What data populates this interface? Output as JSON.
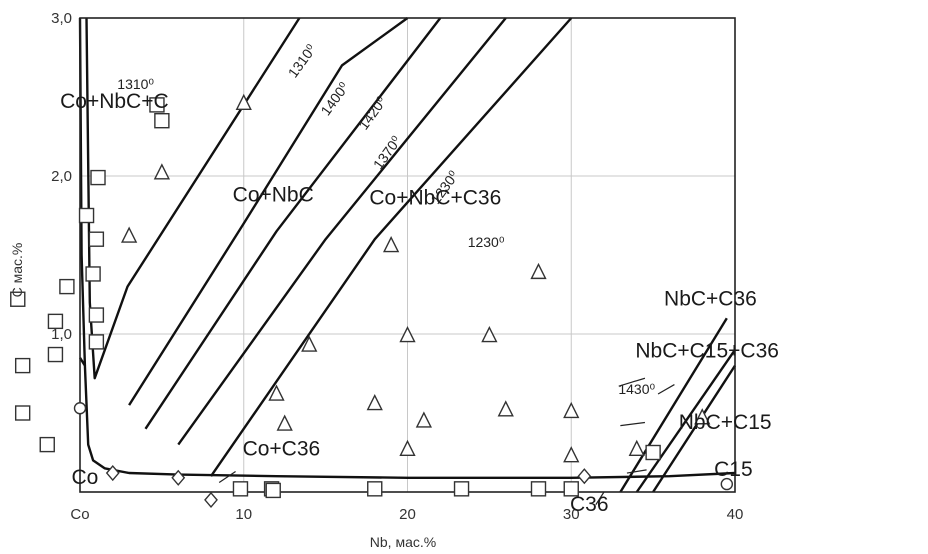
{
  "chart_data": {
    "type": "scatter",
    "title": "",
    "xlabel": "Nb, мас.%",
    "ylabel": "C  мас.%",
    "xlim": [
      0,
      40
    ],
    "ylim": [
      0,
      3.0
    ],
    "x_ticks": [
      {
        "value": 0,
        "label": "Co"
      },
      {
        "value": 10,
        "label": "10"
      },
      {
        "value": 20,
        "label": "20"
      },
      {
        "value": 30,
        "label": "30"
      },
      {
        "value": 40,
        "label": "40"
      }
    ],
    "y_ticks": [
      {
        "value": 1.0,
        "label": "1,0"
      },
      {
        "value": 2.0,
        "label": "2,0"
      },
      {
        "value": 3.0,
        "label": "3,0"
      }
    ],
    "grid": true,
    "series": [
      {
        "marker": "square",
        "points": [
          [
            -0.8,
            1.3
          ],
          [
            4.7,
            2.45
          ],
          [
            5.0,
            2.35
          ],
          [
            1.1,
            1.99
          ],
          [
            0.4,
            1.75
          ],
          [
            1.0,
            1.6
          ],
          [
            -3.8,
            1.22
          ],
          [
            0.8,
            1.38
          ],
          [
            1.0,
            1.12
          ],
          [
            -1.5,
            1.08
          ],
          [
            -1.5,
            0.87
          ],
          [
            1.0,
            0.95
          ],
          [
            -3.5,
            0.8
          ],
          [
            -3.5,
            0.5
          ],
          [
            -2.0,
            0.3
          ],
          [
            9.8,
            0.02
          ],
          [
            11.7,
            0.02
          ],
          [
            11.8,
            0.01
          ],
          [
            18.0,
            0.02
          ],
          [
            23.3,
            0.02
          ],
          [
            28.0,
            0.02
          ],
          [
            30.0,
            0.02
          ],
          [
            35.0,
            0.25
          ]
        ]
      },
      {
        "marker": "triangle",
        "points": [
          [
            10.0,
            2.46
          ],
          [
            5.0,
            2.02
          ],
          [
            3.0,
            1.62
          ],
          [
            19.0,
            1.56
          ],
          [
            28.0,
            1.39
          ],
          [
            14.0,
            0.93
          ],
          [
            20.0,
            0.99
          ],
          [
            25.0,
            0.99
          ],
          [
            18.0,
            0.56
          ],
          [
            21.0,
            0.45
          ],
          [
            26.0,
            0.52
          ],
          [
            30.0,
            0.51
          ],
          [
            12.0,
            0.62
          ],
          [
            12.5,
            0.43
          ],
          [
            20.0,
            0.27
          ],
          [
            30.0,
            0.23
          ],
          [
            34.0,
            0.27
          ],
          [
            38.0,
            0.47
          ]
        ]
      },
      {
        "marker": "diamond",
        "points": [
          [
            2.0,
            0.12
          ],
          [
            6.0,
            0.09
          ],
          [
            8.0,
            -0.05
          ],
          [
            30.8,
            0.1
          ]
        ]
      },
      {
        "marker": "circle",
        "points": [
          [
            0.0,
            0.53
          ],
          [
            39.5,
            0.05
          ]
        ]
      }
    ],
    "lines": [
      {
        "points": [
          [
            0.4,
            3.0
          ],
          [
            0.6,
            1.2
          ],
          [
            0.9,
            0.72
          ],
          [
            2.9,
            1.3
          ],
          [
            13.4,
            3.0
          ]
        ]
      },
      {
        "points": [
          [
            0.0,
            0.85
          ],
          [
            0.3,
            0.8
          ],
          [
            0.5,
            0.3
          ],
          [
            0.8,
            0.2
          ],
          [
            1.5,
            0.15
          ],
          [
            3.0,
            0.12
          ],
          [
            6.0,
            0.11
          ],
          [
            12.0,
            0.1
          ],
          [
            20.0,
            0.09
          ],
          [
            30.0,
            0.09
          ],
          [
            36.0,
            0.1
          ],
          [
            40.0,
            0.12
          ]
        ]
      },
      {
        "points": [
          [
            0.0,
            3.0
          ],
          [
            0.1,
            1.5
          ],
          [
            0.3,
            0.8
          ]
        ]
      },
      {
        "points": [
          [
            3.0,
            0.55
          ],
          [
            10.0,
            1.7
          ],
          [
            16.0,
            2.7
          ],
          [
            20.0,
            3.0
          ]
        ]
      },
      {
        "points": [
          [
            4.0,
            0.4
          ],
          [
            12.0,
            1.65
          ],
          [
            22.0,
            3.0
          ]
        ]
      },
      {
        "points": [
          [
            6.0,
            0.3
          ],
          [
            15.0,
            1.6
          ],
          [
            26.0,
            3.0
          ]
        ]
      },
      {
        "points": [
          [
            8.0,
            0.1
          ],
          [
            18.0,
            1.6
          ],
          [
            30.0,
            3.0
          ]
        ]
      },
      {
        "points": [
          [
            33.0,
            0.0
          ],
          [
            39.5,
            1.1
          ]
        ]
      },
      {
        "points": [
          [
            34.0,
            0.0
          ],
          [
            40.0,
            0.9
          ]
        ]
      },
      {
        "points": [
          [
            35.0,
            0.0
          ],
          [
            40.0,
            0.8
          ]
        ]
      }
    ],
    "annotations": [
      {
        "text": "Co+NbC+C",
        "x": 2.1,
        "y": 2.43,
        "kind": "region"
      },
      {
        "text": "1310⁰",
        "x": 3.4,
        "y": 2.55,
        "kind": "temp"
      },
      {
        "text": "Co+NbC",
        "x": 11.8,
        "y": 1.84,
        "kind": "region"
      },
      {
        "text": "Co+NbC+C36",
        "x": 21.7,
        "y": 1.82,
        "kind": "region"
      },
      {
        "text": "1230⁰",
        "x": 24.8,
        "y": 1.55,
        "kind": "temp"
      },
      {
        "text": "Co+C36",
        "x": 12.3,
        "y": 0.23,
        "kind": "region"
      },
      {
        "text": "NbC+C36",
        "x": 38.5,
        "y": 1.18,
        "kind": "region"
      },
      {
        "text": "NbC+C15+C36",
        "x": 38.3,
        "y": 0.85,
        "kind": "region"
      },
      {
        "text": "1430⁰",
        "x": 34.0,
        "y": 0.62,
        "kind": "temp"
      },
      {
        "text": "NbC+C15",
        "x": 39.4,
        "y": 0.4,
        "kind": "region"
      },
      {
        "text": "C15",
        "x": 39.9,
        "y": 0.1,
        "kind": "region"
      },
      {
        "text": "C36",
        "x": 31.1,
        "y": -0.12,
        "kind": "region"
      },
      {
        "text": "Co",
        "x": 0.3,
        "y": 0.05,
        "kind": "region"
      },
      {
        "text": "1310⁰",
        "x": 13.8,
        "y": 2.71,
        "kind": "iso",
        "angle": -54
      },
      {
        "text": "1400⁰",
        "x": 15.8,
        "y": 2.47,
        "kind": "iso",
        "angle": -54
      },
      {
        "text": "1420⁰",
        "x": 18.1,
        "y": 2.38,
        "kind": "iso",
        "angle": -54
      },
      {
        "text": "1370⁰",
        "x": 19.0,
        "y": 2.13,
        "kind": "iso",
        "angle": -54
      },
      {
        "text": "1230⁰",
        "x": 22.5,
        "y": 1.91,
        "kind": "iso",
        "angle": -54
      }
    ]
  }
}
